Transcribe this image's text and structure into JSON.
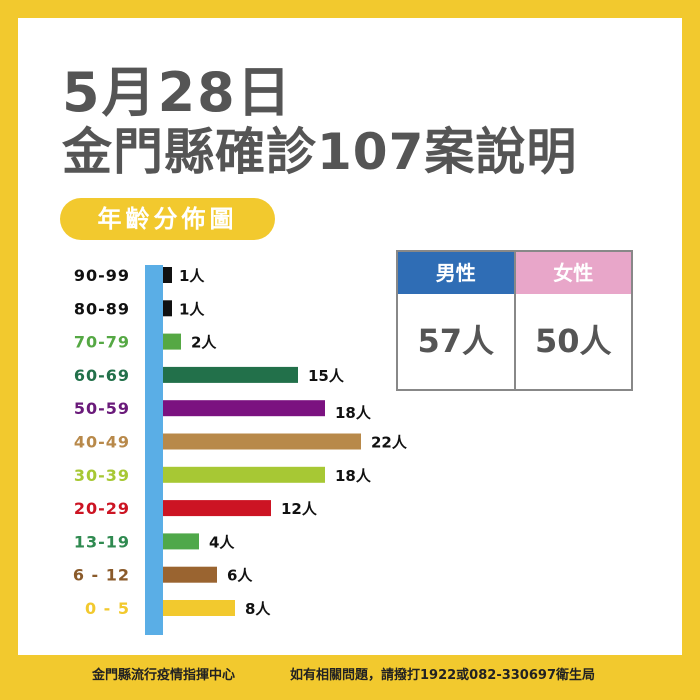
{
  "title": {
    "date": "5月28日",
    "subtitle": "金門縣確診107案說明"
  },
  "section_label": "年齡分佈圖",
  "gender": {
    "male_label": "男性",
    "male_value": "57人",
    "female_label": "女性",
    "female_value": "50人",
    "male_color": "#2F6DB5",
    "female_color": "#E8A6C9"
  },
  "footer": {
    "left": "金門縣流行疫情指揮中心",
    "right": "如有相關問題，請撥打1922或082-330697衛生局"
  },
  "chart_data": {
    "type": "bar",
    "orientation": "horizontal",
    "title": "年齡分佈圖",
    "unit": "人",
    "categories": [
      "90-99",
      "80-89",
      "70-79",
      "60-69",
      "50-59",
      "40-49",
      "30-39",
      "20-29",
      "13-19",
      "6 - 12",
      "0 - 5"
    ],
    "values": [
      1,
      1,
      2,
      15,
      18,
      22,
      18,
      12,
      4,
      6,
      8
    ],
    "labels": [
      "1人",
      "1人",
      "2人",
      "15人",
      "18人",
      "22人",
      "18人",
      "12人",
      "4人",
      "6人",
      "8人"
    ],
    "colors": [
      "#111111",
      "#111111",
      "#55A844",
      "#22704A",
      "#7B1280",
      "#B8894A",
      "#A7C834",
      "#CC1423",
      "#4FA84A",
      "#9A6430",
      "#F2C92E"
    ],
    "label_colors": [
      "#111111",
      "#111111",
      "#55A844",
      "#22704A",
      "#6A1A7A",
      "#B8894A",
      "#A7C834",
      "#CC1423",
      "#2F8A50",
      "#8A5A2A",
      "#F2C92E"
    ],
    "axis_color": "#5AAEE6"
  }
}
